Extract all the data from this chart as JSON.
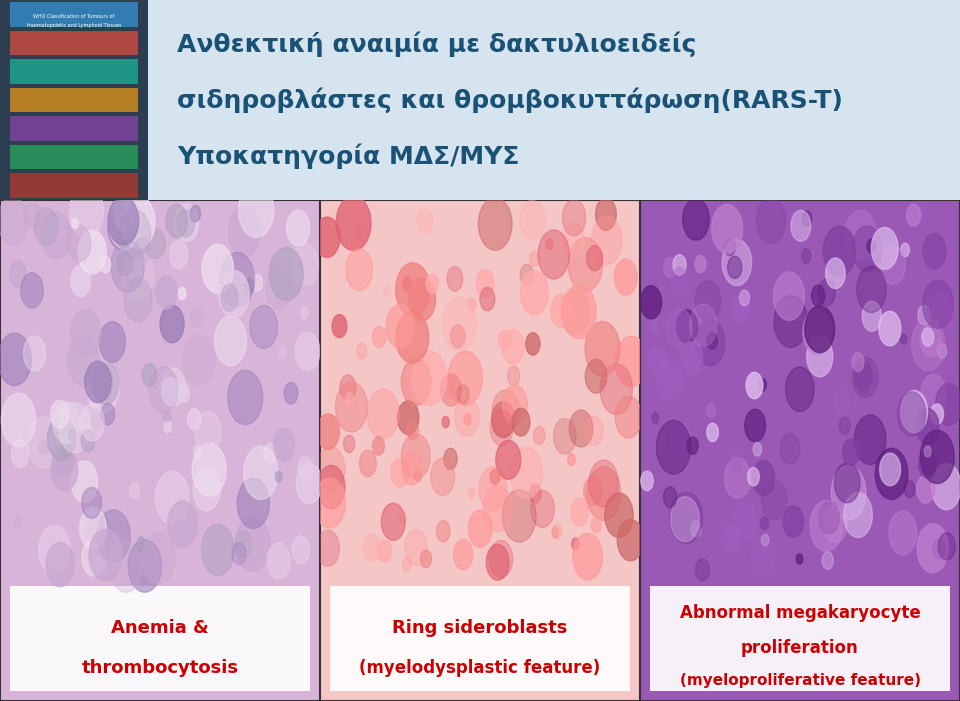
{
  "title_line1": "Ανθεκτική αναιμία με δακτυλιοειδείς",
  "title_line2": "σιδηροβλάστες και θρομβοκυττάρωση(RARS-T)",
  "title_line3": "Υποκατηγορία ΜΔΣ/ΜΥΣ",
  "title_color": "#1a5276",
  "header_bg": "#d6e4f0",
  "label1_line1": "Anemia &",
  "label1_line2": "thrombocytosis",
  "label2_line1": "Ring sideroblasts",
  "label2_line2": "(myelodysplastic feature)",
  "label3_line1": "Abnormal megakaryocyte",
  "label3_line2": "proliferation",
  "label3_line3": "(myeloproliferative feature)",
  "label_color": "#cc0000",
  "label_bg": "#ffffff",
  "fig_width": 9.6,
  "fig_height": 7.01,
  "dpi": 100
}
